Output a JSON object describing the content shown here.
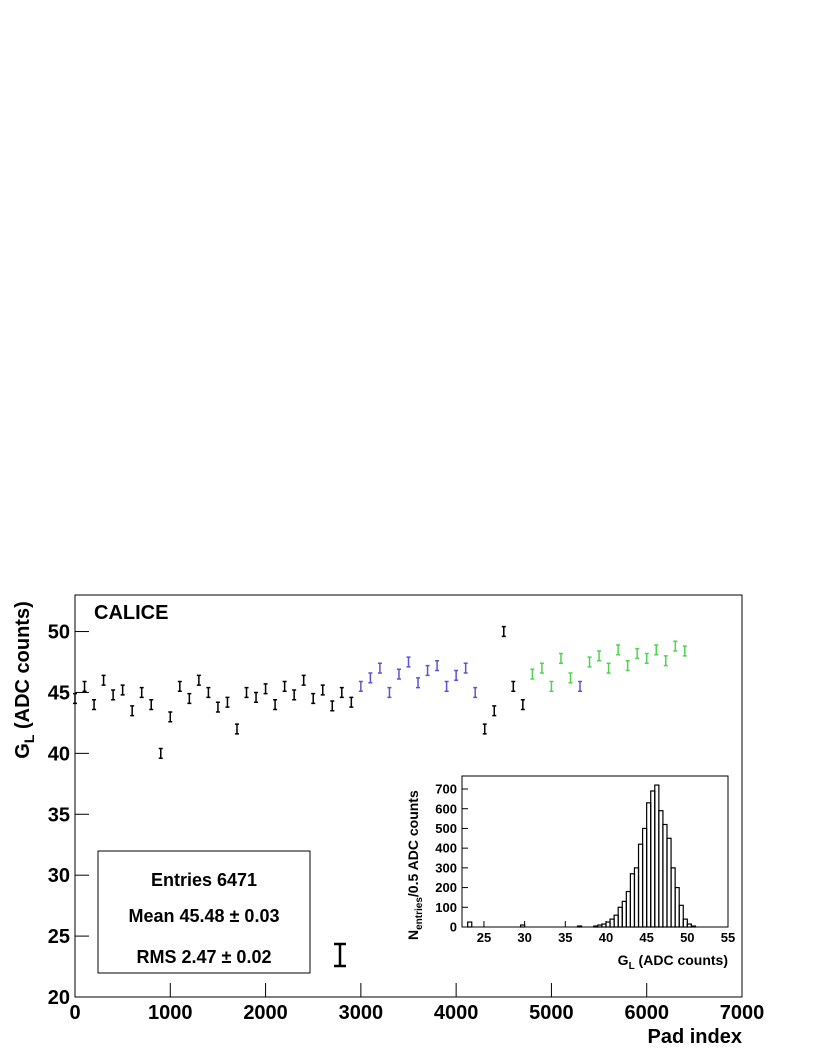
{
  "chart_data": [
    {
      "type": "errorbar-scatter",
      "label": "CALICE",
      "xlabel": "Pad index",
      "ylabel": [
        "G",
        "L",
        " (ADC counts)"
      ],
      "xlim": [
        0,
        7000
      ],
      "ylim": [
        20,
        53
      ],
      "xticks": [
        0,
        1000,
        2000,
        3000,
        4000,
        5000,
        6000,
        7000
      ],
      "yticks": [
        20,
        25,
        30,
        35,
        40,
        45,
        50
      ],
      "stats": [
        "Entries 6471",
        "Mean 45.48 ± 0.03",
        "RMS 2.47 ± 0.02"
      ],
      "series": [
        {
          "color": "#000000",
          "x": [
            0,
            100,
            200,
            300,
            400,
            500,
            600,
            700,
            800,
            900,
            1000,
            1100,
            1200,
            1300,
            1400,
            1500,
            1600,
            1700,
            1800,
            1900,
            2000,
            2100,
            2200,
            2300,
            2400,
            2500,
            2600,
            2700,
            2800,
            2900,
            4300,
            4400,
            4500,
            4600,
            4700
          ],
          "values": [
            44.5,
            45.5,
            44,
            46,
            44.8,
            45.2,
            43.5,
            45,
            44,
            40,
            43,
            45.5,
            44.5,
            46,
            45,
            43.8,
            44.2,
            42,
            45,
            44.6,
            45.3,
            44,
            45.5,
            44.8,
            46,
            44.5,
            45.2,
            43.9,
            45,
            44.2,
            42,
            43.5,
            50,
            45.5,
            44
          ],
          "errors": [
            0.4,
            0.4,
            0.4,
            0.4,
            0.4,
            0.4,
            0.4,
            0.4,
            0.4,
            0.4,
            0.4,
            0.4,
            0.4,
            0.4,
            0.4,
            0.4,
            0.4,
            0.4,
            0.4,
            0.4,
            0.4,
            0.4,
            0.4,
            0.4,
            0.4,
            0.4,
            0.4,
            0.4,
            0.4,
            0.4,
            0.4,
            0.4,
            0.4,
            0.4,
            0.4
          ]
        },
        {
          "color": "#5b55d6",
          "x": [
            3000,
            3100,
            3200,
            3300,
            3400,
            3500,
            3600,
            3700,
            3800,
            3900,
            4000,
            4100,
            4200,
            5300
          ],
          "values": [
            45.5,
            46.2,
            47,
            45,
            46.5,
            47.5,
            45.8,
            46.8,
            47.2,
            45.5,
            46.4,
            47,
            45,
            45.5
          ],
          "errors": [
            0.4,
            0.4,
            0.4,
            0.4,
            0.4,
            0.4,
            0.4,
            0.4,
            0.4,
            0.4,
            0.4,
            0.4,
            0.4,
            0.4
          ]
        },
        {
          "color": "#4fd44f",
          "x": [
            4800,
            4900,
            5000,
            5100,
            5200,
            5400,
            5500,
            5600,
            5700,
            5800,
            5900,
            6000,
            6100,
            6200,
            6300,
            6400
          ],
          "values": [
            46.5,
            47,
            45.5,
            47.8,
            46.2,
            47.5,
            48,
            47,
            48.5,
            47.2,
            48.2,
            47.8,
            48.5,
            47.6,
            48.8,
            48.4
          ],
          "errors": [
            0.4,
            0.4,
            0.4,
            0.4,
            0.4,
            0.4,
            0.4,
            0.4,
            0.4,
            0.4,
            0.4,
            0.4,
            0.4,
            0.4,
            0.4,
            0.4
          ]
        }
      ]
    },
    {
      "type": "histogram",
      "xlabel": [
        "G",
        "L",
        " (ADC counts)"
      ],
      "ylabel": [
        "N",
        "entries",
        "/0.5 ADC counts"
      ],
      "xlim": [
        22.3,
        55
      ],
      "ylim": [
        0,
        766
      ],
      "xticks": [
        25,
        30,
        35,
        40,
        45,
        50,
        55
      ],
      "yticks": [
        0,
        100,
        200,
        300,
        400,
        500,
        600,
        700
      ],
      "bins": [
        22.5,
        23,
        23.5,
        24,
        24.5,
        25,
        25.5,
        26,
        26.5,
        27,
        27.5,
        28,
        28.5,
        29,
        29.5,
        30,
        30.5,
        31,
        31.5,
        32,
        32.5,
        33,
        33.5,
        34,
        34.5,
        35,
        35.5,
        36,
        36.5,
        37,
        37.5,
        38,
        38.5,
        39,
        39.5,
        40,
        40.5,
        41,
        41.5,
        42,
        42.5,
        43,
        43.5,
        44,
        44.5,
        45,
        45.5,
        46,
        46.5,
        47,
        47.5,
        48,
        48.5,
        49,
        49.5,
        50,
        50.5,
        51
      ],
      "values": [
        0,
        25,
        0,
        0,
        0,
        0,
        0,
        0,
        0,
        0,
        0,
        0,
        0,
        0,
        10,
        0,
        0,
        0,
        0,
        0,
        0,
        0,
        0,
        0,
        0,
        0,
        0,
        0,
        5,
        0,
        0,
        0,
        5,
        10,
        15,
        25,
        40,
        60,
        100,
        130,
        180,
        270,
        300,
        420,
        500,
        630,
        690,
        720,
        590,
        520,
        450,
        300,
        200,
        110,
        40,
        15,
        5
      ],
      "color": "#000000"
    }
  ]
}
